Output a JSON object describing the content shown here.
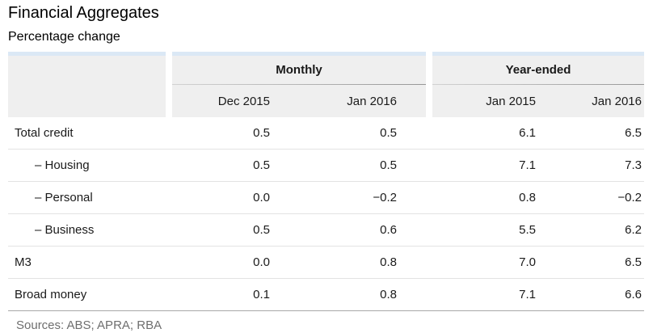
{
  "title": "Financial Aggregates",
  "subtitle": "Percentage change",
  "table": {
    "groups": [
      {
        "label": "Monthly",
        "columns": [
          "Dec 2015",
          "Jan 2016"
        ]
      },
      {
        "label": "Year-ended",
        "columns": [
          "Jan 2015",
          "Jan 2016"
        ]
      }
    ],
    "rows": [
      {
        "label": "Total credit",
        "values": [
          "0.5",
          "0.5",
          "6.1",
          "6.5"
        ]
      },
      {
        "label": "– Housing",
        "values": [
          "0.5",
          "0.5",
          "7.1",
          "7.3"
        ]
      },
      {
        "label": "– Personal",
        "values": [
          "0.0",
          "−0.2",
          "0.8",
          "−0.2"
        ]
      },
      {
        "label": "– Business",
        "values": [
          "0.5",
          "0.6",
          "5.5",
          "6.2"
        ]
      },
      {
        "label": "M3",
        "values": [
          "0.0",
          "0.8",
          "7.0",
          "6.5"
        ]
      },
      {
        "label": "Broad money",
        "values": [
          "0.1",
          "0.8",
          "7.1",
          "6.6"
        ]
      }
    ]
  },
  "footer": {
    "sources": "Sources: ABS; APRA; RBA"
  },
  "colors": {
    "header_bg": "#efefef",
    "accent_strip": "#dbe8f5",
    "group_underline": "#979797",
    "row_divider": "#e3e3e3",
    "table_bottom_border": "#a8a8a8",
    "sources_text": "#6e6e6e"
  },
  "chart_data": {
    "type": "table",
    "title": "Financial Aggregates",
    "subtitle": "Percentage change",
    "column_groups": [
      {
        "name": "Monthly",
        "columns": [
          "Dec 2015",
          "Jan 2016"
        ]
      },
      {
        "name": "Year-ended",
        "columns": [
          "Jan 2015",
          "Jan 2016"
        ]
      }
    ],
    "rows": [
      {
        "name": "Total credit",
        "monthly": [
          0.5,
          0.5
        ],
        "year_ended": [
          6.1,
          6.5
        ]
      },
      {
        "name": "Housing",
        "monthly": [
          0.5,
          0.5
        ],
        "year_ended": [
          7.1,
          7.3
        ]
      },
      {
        "name": "Personal",
        "monthly": [
          0.0,
          -0.2
        ],
        "year_ended": [
          0.8,
          -0.2
        ]
      },
      {
        "name": "Business",
        "monthly": [
          0.5,
          0.6
        ],
        "year_ended": [
          5.5,
          6.2
        ]
      },
      {
        "name": "M3",
        "monthly": [
          0.0,
          0.8
        ],
        "year_ended": [
          7.0,
          6.5
        ]
      },
      {
        "name": "Broad money",
        "monthly": [
          0.1,
          0.8
        ],
        "year_ended": [
          7.1,
          6.6
        ]
      }
    ],
    "units": "percentage change",
    "sources": [
      "ABS",
      "APRA",
      "RBA"
    ]
  }
}
